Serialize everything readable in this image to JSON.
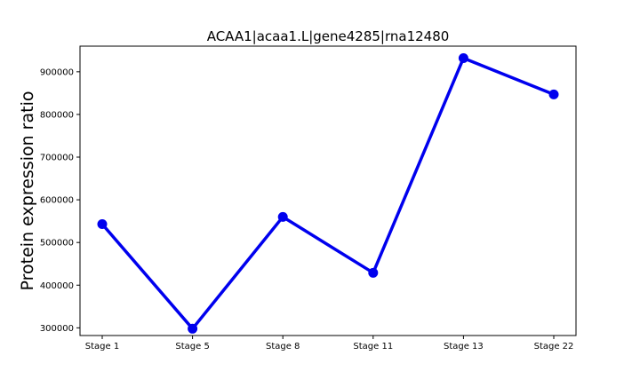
{
  "chart_data": {
    "type": "line",
    "title": "ACAA1|acaa1.L|gene4285|rna12480",
    "xlabel": "",
    "ylabel": "Protein expression ratio",
    "categories": [
      "Stage 1",
      "Stage 5",
      "Stage 8",
      "Stage 11",
      "Stage 13",
      "Stage 22"
    ],
    "series": [
      {
        "values": [
          543000,
          298000,
          560000,
          429000,
          932000,
          847000
        ],
        "color": "#0000ee"
      }
    ],
    "ylim": [
      282000,
      960000
    ],
    "yticks": [
      300000,
      400000,
      500000,
      600000,
      700000,
      800000,
      900000
    ],
    "ytick_labels": [
      "300000",
      "400000",
      "500000",
      "600000",
      "700000",
      "800000",
      "900000"
    ],
    "grid": false,
    "legend": "none"
  }
}
